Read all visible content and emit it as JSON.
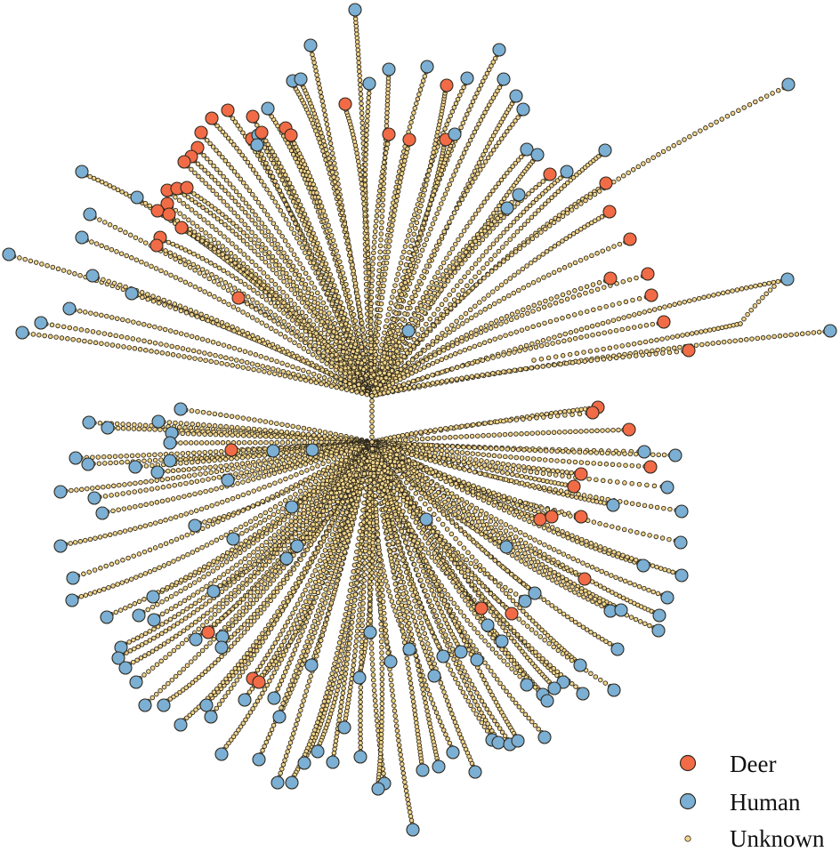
{
  "figure": {
    "kind": "radial-network-tree",
    "colors": {
      "deer": "#f26b47",
      "human": "#7bafd4",
      "unknown": "#f3d58a",
      "stroke": "#2f2a1e"
    },
    "legend": {
      "position": "bottom-right",
      "items": [
        {
          "label": "Deer",
          "type": "deer"
        },
        {
          "label": "Human",
          "type": "human"
        },
        {
          "label": "Unknown",
          "type": "unknown"
        }
      ]
    }
  }
}
